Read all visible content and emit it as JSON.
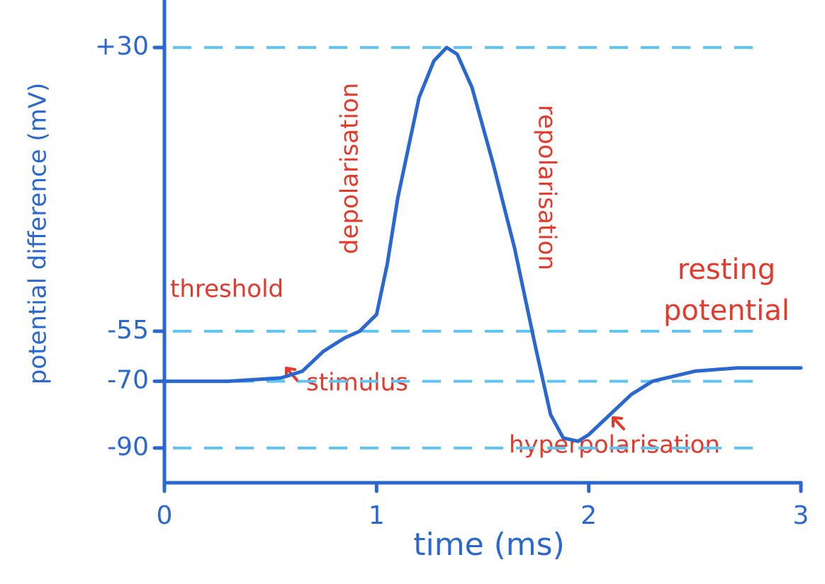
{
  "chart_data": {
    "type": "line",
    "x_label": "time (ms)",
    "y_label": "potential difference (mV)",
    "x": [
      0,
      0.3,
      0.55,
      0.65,
      0.75,
      0.85,
      0.92,
      1.0,
      1.05,
      1.1,
      1.15,
      1.2,
      1.27,
      1.33,
      1.38,
      1.45,
      1.55,
      1.65,
      1.75,
      1.82,
      1.88,
      1.95,
      2.0,
      2.1,
      2.2,
      2.3,
      2.5,
      2.7,
      3.0
    ],
    "values": [
      -70,
      -70,
      -69,
      -67,
      -61,
      -57,
      -55,
      -50,
      -35,
      -15,
      0,
      15,
      26,
      30,
      28,
      18,
      -5,
      -30,
      -60,
      -80,
      -87,
      -88,
      -86,
      -80,
      -74,
      -70,
      -67,
      -66,
      -66
    ],
    "color": "#2a67cf",
    "xlim": [
      0,
      3
    ],
    "xticks": [
      0,
      1,
      2,
      3
    ],
    "ylim": [
      -100,
      40
    ],
    "yticks": [
      {
        "value": 30,
        "label": "+30"
      },
      -55,
      -70,
      -90
    ],
    "grid": true,
    "annotations": [
      "threshold",
      "depolarisation",
      "repolarisation",
      "stimulus",
      "hyperpolarisation",
      "resting potential"
    ]
  }
}
